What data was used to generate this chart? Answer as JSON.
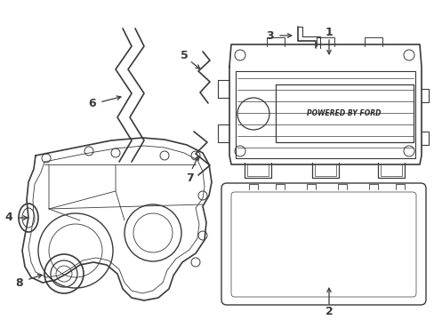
{
  "bg_color": "#ffffff",
  "lc": "#3a3a3a",
  "figsize": [
    4.89,
    3.6
  ],
  "dpi": 100
}
